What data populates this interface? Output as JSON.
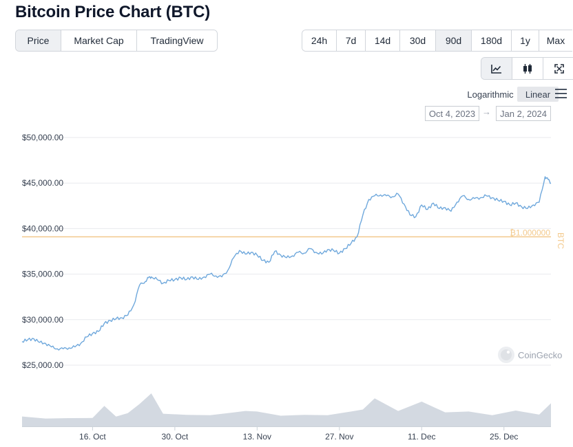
{
  "page": {
    "title": "Bitcoin Price Chart (BTC)"
  },
  "tabs": [
    {
      "label": "Price",
      "active": true
    },
    {
      "label": "Market Cap",
      "active": false
    },
    {
      "label": "TradingView",
      "active": false
    }
  ],
  "ranges": [
    {
      "label": "24h",
      "active": false
    },
    {
      "label": "7d",
      "active": false
    },
    {
      "label": "14d",
      "active": false
    },
    {
      "label": "30d",
      "active": false
    },
    {
      "label": "90d",
      "active": true
    },
    {
      "label": "180d",
      "active": false
    },
    {
      "label": "1y",
      "active": false
    },
    {
      "label": "Max",
      "active": false
    }
  ],
  "chart_types": [
    {
      "icon": "line-chart-icon"
    },
    {
      "icon": "candlestick-icon"
    },
    {
      "icon": "fullscreen-icon"
    }
  ],
  "scale": {
    "log_label": "Logarithmic",
    "linear_label": "Linear",
    "selected": "linear"
  },
  "date_range": {
    "from": "Oct 4, 2023",
    "to": "Jan 2, 2024",
    "arrow": "→"
  },
  "watermark": "CoinGecko",
  "colors": {
    "line": "#6fa8dc",
    "reference": "#f3c98b",
    "volume": "#d3d9e1",
    "grid": "#e8eaed"
  },
  "chart_data": {
    "type": "line",
    "y_ticks": [
      "$50,000.00",
      "$45,000.00",
      "$40,000.00",
      "$35,000.00",
      "$30,000.00",
      "$25,000.00"
    ],
    "y_tick_values": [
      50000,
      45000,
      40000,
      35000,
      30000,
      25000
    ],
    "x_ticks": [
      "16. Oct",
      "30. Oct",
      "13. Nov",
      "27. Nov",
      "11. Dec",
      "25. Dec"
    ],
    "x_tick_days": [
      12,
      26,
      40,
      54,
      68,
      82
    ],
    "x_range_days": [
      0,
      90
    ],
    "y_range": [
      24000,
      51000
    ],
    "reference_line": {
      "value": 39100,
      "label": "₿1.000000",
      "axis_label": "BTC"
    },
    "series": [
      {
        "x": [
          0,
          1,
          2,
          3,
          4,
          5,
          6,
          7,
          8,
          9,
          10,
          11,
          12,
          13,
          14,
          15,
          16,
          17,
          18,
          19,
          20,
          21,
          21.5,
          22,
          23,
          24,
          25,
          26,
          27,
          28,
          29,
          30,
          31,
          32,
          33,
          34,
          35,
          36,
          37,
          38,
          39,
          40,
          41,
          42,
          43,
          44,
          45,
          46,
          47,
          48,
          49,
          50,
          51,
          52,
          53,
          54,
          55,
          56,
          57,
          58,
          59,
          60,
          61,
          62,
          63,
          64,
          65,
          66,
          67,
          68,
          69,
          70,
          71,
          72,
          73,
          74,
          75,
          76,
          77,
          78,
          79,
          80,
          81,
          82,
          83,
          84,
          85,
          86,
          87,
          88,
          89,
          89.5,
          90
        ],
        "y": [
          27600,
          27800,
          27900,
          27500,
          27400,
          27000,
          26800,
          26800,
          26900,
          27000,
          27400,
          28100,
          28500,
          28700,
          29600,
          29900,
          30100,
          30200,
          30500,
          31600,
          33800,
          34200,
          34600,
          34700,
          34400,
          34000,
          34300,
          34400,
          34600,
          34400,
          34700,
          34400,
          34700,
          35000,
          34800,
          34700,
          35400,
          36800,
          37600,
          37200,
          37400,
          37100,
          36500,
          36300,
          37500,
          37100,
          36800,
          37000,
          37400,
          37300,
          37800,
          37400,
          37200,
          37700,
          37600,
          37300,
          37800,
          38400,
          39100,
          41500,
          43200,
          43600,
          43700,
          43600,
          43500,
          43800,
          42700,
          41500,
          41300,
          42600,
          42100,
          42800,
          42200,
          42300,
          41900,
          42900,
          43600,
          43200,
          43300,
          43400,
          43600,
          43400,
          43100,
          43000,
          42600,
          42800,
          42400,
          42200,
          42600,
          42900,
          45700,
          45400,
          45000
        ]
      }
    ],
    "volume": {
      "x": [
        0,
        4,
        8,
        12,
        14,
        16,
        18,
        20,
        22,
        24,
        28,
        32,
        36,
        38,
        40,
        44,
        48,
        52,
        56,
        58,
        60,
        64,
        68,
        72,
        76,
        80,
        84,
        88,
        90
      ],
      "y": [
        0.3,
        0.28,
        0.25,
        0.3,
        0.62,
        0.35,
        0.4,
        0.8,
        1.0,
        0.45,
        0.35,
        0.4,
        0.42,
        0.55,
        0.45,
        0.38,
        0.35,
        0.4,
        0.45,
        0.6,
        0.85,
        0.55,
        0.75,
        0.5,
        0.45,
        0.4,
        0.48,
        0.42,
        0.7
      ]
    }
  }
}
